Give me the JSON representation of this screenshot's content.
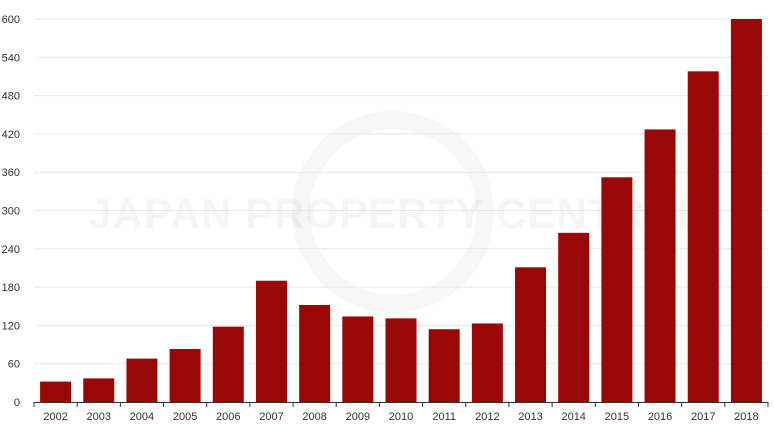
{
  "watermark": "JAPAN PROPERTY CENTRAL",
  "colors": {
    "bar": "#990707",
    "grid": "#e8e8e8",
    "axis": "#333333",
    "text": "#333333"
  },
  "chart_data": {
    "type": "bar",
    "title": "",
    "xlabel": "",
    "ylabel": "",
    "categories": [
      "2002",
      "2003",
      "2004",
      "2005",
      "2006",
      "2007",
      "2008",
      "2009",
      "2010",
      "2011",
      "2012",
      "2013",
      "2014",
      "2015",
      "2016",
      "2017",
      "2018"
    ],
    "values": [
      32,
      37,
      68,
      83,
      118,
      190,
      152,
      134,
      131,
      114,
      123,
      211,
      265,
      352,
      427,
      518,
      600
    ],
    "ylim": [
      0,
      600
    ],
    "yticks": [
      "0",
      "60",
      "120",
      "180",
      "240",
      "300",
      "360",
      "420",
      "480",
      "540",
      "600"
    ],
    "grid": true
  }
}
